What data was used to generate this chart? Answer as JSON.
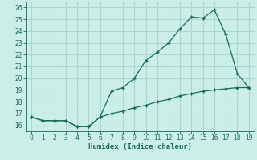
{
  "xlabel": "Humidex (Indice chaleur)",
  "bg_color": "#cceee8",
  "grid_color": "#aad8d0",
  "line_color": "#1a6b5a",
  "line1_x": [
    0,
    1,
    2,
    3,
    4,
    5,
    6,
    7,
    8,
    9,
    10,
    11,
    12,
    13,
    14,
    15,
    16,
    17,
    18,
    19
  ],
  "line1_y": [
    16.7,
    16.4,
    16.4,
    16.4,
    15.9,
    15.9,
    16.7,
    18.9,
    19.2,
    20.0,
    21.5,
    22.2,
    23.0,
    24.2,
    25.2,
    25.1,
    25.8,
    23.7,
    20.4,
    19.2
  ],
  "line2_x": [
    0,
    1,
    2,
    3,
    4,
    5,
    6,
    7,
    8,
    9,
    10,
    11,
    12,
    13,
    14,
    15,
    16,
    17,
    18,
    19
  ],
  "line2_y": [
    16.7,
    16.4,
    16.4,
    16.4,
    15.9,
    15.9,
    16.7,
    17.0,
    17.2,
    17.5,
    17.7,
    18.0,
    18.2,
    18.5,
    18.7,
    18.9,
    19.0,
    19.1,
    19.2,
    19.2
  ],
  "ylim": [
    15.5,
    26.5
  ],
  "yticks": [
    16,
    17,
    18,
    19,
    20,
    21,
    22,
    23,
    24,
    25,
    26
  ],
  "xlim": [
    -0.5,
    19.5
  ],
  "xticks": [
    0,
    1,
    2,
    3,
    4,
    5,
    6,
    7,
    8,
    9,
    10,
    11,
    12,
    13,
    14,
    15,
    16,
    17,
    18,
    19
  ]
}
